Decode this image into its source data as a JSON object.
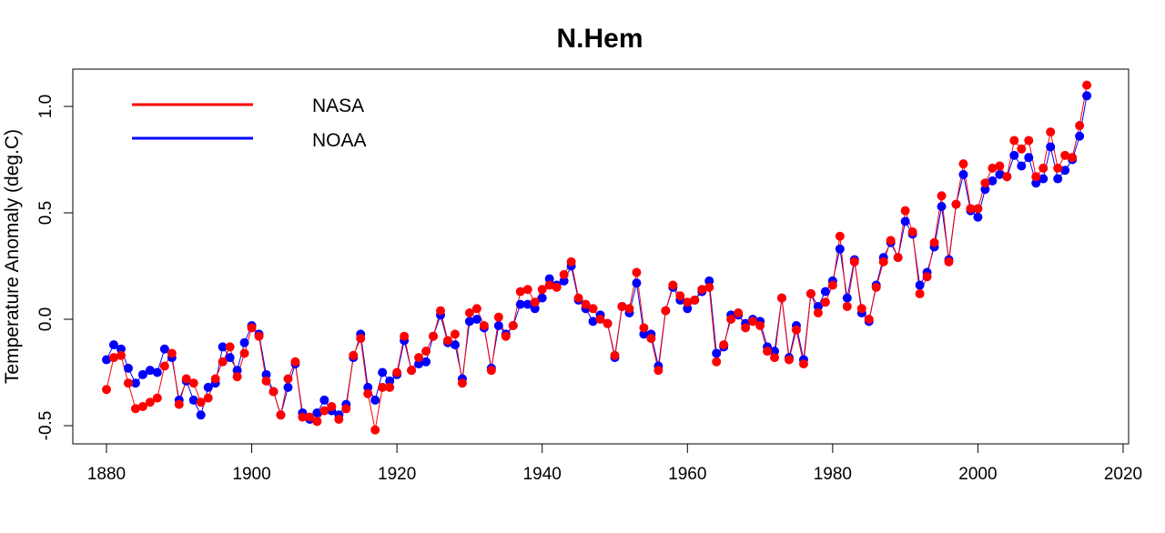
{
  "chart_data": {
    "type": "line",
    "title": "N.Hem",
    "xlabel": "",
    "ylabel": "Temperature Anomaly (deg.C)",
    "xlim": [
      1880,
      2020
    ],
    "ylim": [
      -0.5,
      1.0
    ],
    "x_ticks": [
      1880,
      1900,
      1920,
      1940,
      1960,
      1980,
      2000,
      2020
    ],
    "y_ticks": [
      -0.5,
      0.0,
      0.5,
      1.0
    ],
    "x_tick_labels": [
      "1880",
      "1900",
      "1920",
      "1940",
      "1960",
      "1980",
      "2000",
      "2020"
    ],
    "y_tick_labels": [
      "-0.5",
      "0.0",
      "0.5",
      "1.0"
    ],
    "grid": false,
    "legend_position": "top-left",
    "x_start": 1880,
    "series": [
      {
        "name": "NASA",
        "color": "#ff0000",
        "values": [
          -0.33,
          -0.18,
          -0.17,
          -0.3,
          -0.42,
          -0.41,
          -0.39,
          -0.37,
          -0.22,
          -0.16,
          -0.4,
          -0.28,
          -0.3,
          -0.39,
          -0.37,
          -0.28,
          -0.2,
          -0.13,
          -0.27,
          -0.16,
          -0.04,
          -0.08,
          -0.29,
          -0.34,
          -0.45,
          -0.28,
          -0.2,
          -0.46,
          -0.46,
          -0.48,
          -0.43,
          -0.41,
          -0.47,
          -0.42,
          -0.17,
          -0.09,
          -0.35,
          -0.52,
          -0.32,
          -0.32,
          -0.25,
          -0.08,
          -0.24,
          -0.18,
          -0.15,
          -0.08,
          0.04,
          -0.1,
          -0.07,
          -0.3,
          0.03,
          0.05,
          -0.03,
          -0.24,
          0.01,
          -0.08,
          -0.03,
          0.13,
          0.14,
          0.08,
          0.14,
          0.16,
          0.15,
          0.21,
          0.27,
          0.1,
          0.07,
          0.05,
          0.0,
          -0.02,
          -0.17,
          0.06,
          0.05,
          0.22,
          -0.04,
          -0.09,
          -0.24,
          0.04,
          0.16,
          0.11,
          0.08,
          0.09,
          0.14,
          0.15,
          -0.2,
          -0.12,
          0.0,
          0.03,
          -0.04,
          -0.01,
          -0.03,
          -0.15,
          -0.18,
          0.1,
          -0.19,
          -0.05,
          -0.21,
          0.12,
          0.03,
          0.08,
          0.16,
          0.39,
          0.06,
          0.27,
          0.05,
          0.0,
          0.15,
          0.27,
          0.37,
          0.29,
          0.51,
          0.41,
          0.12,
          0.2,
          0.36,
          0.58,
          0.27,
          0.54,
          0.73,
          0.52,
          0.52,
          0.64,
          0.71,
          0.72,
          0.67,
          0.84,
          0.8,
          0.84,
          0.67,
          0.71,
          0.88,
          0.71,
          0.77,
          0.76,
          0.91,
          1.1
        ]
      },
      {
        "name": "NOAA",
        "color": "#0000ff",
        "values": [
          -0.19,
          -0.12,
          -0.14,
          -0.23,
          -0.3,
          -0.26,
          -0.24,
          -0.25,
          -0.14,
          -0.18,
          -0.38,
          -0.29,
          -0.38,
          -0.45,
          -0.32,
          -0.3,
          -0.13,
          -0.18,
          -0.24,
          -0.11,
          -0.03,
          -0.07,
          -0.26,
          -0.34,
          -0.45,
          -0.32,
          -0.21,
          -0.44,
          -0.47,
          -0.44,
          -0.38,
          -0.43,
          -0.45,
          -0.4,
          -0.18,
          -0.07,
          -0.32,
          -0.38,
          -0.25,
          -0.29,
          -0.26,
          -0.1,
          -0.24,
          -0.21,
          -0.2,
          -0.08,
          0.02,
          -0.11,
          -0.12,
          -0.28,
          -0.01,
          0.0,
          -0.04,
          -0.23,
          -0.03,
          -0.07,
          -0.03,
          0.07,
          0.07,
          0.05,
          0.1,
          0.19,
          0.16,
          0.18,
          0.25,
          0.09,
          0.05,
          -0.01,
          0.02,
          -0.02,
          -0.18,
          0.06,
          0.03,
          0.17,
          -0.07,
          -0.07,
          -0.22,
          0.04,
          0.15,
          0.09,
          0.05,
          0.09,
          0.13,
          0.18,
          -0.16,
          -0.13,
          0.02,
          0.02,
          -0.02,
          0.0,
          -0.01,
          -0.13,
          -0.15,
          0.1,
          -0.18,
          -0.03,
          -0.19,
          0.12,
          0.06,
          0.13,
          0.18,
          0.33,
          0.1,
          0.28,
          0.03,
          -0.01,
          0.16,
          0.29,
          0.36,
          0.29,
          0.46,
          0.4,
          0.16,
          0.22,
          0.34,
          0.53,
          0.28,
          0.54,
          0.68,
          0.51,
          0.48,
          0.61,
          0.65,
          0.68,
          0.67,
          0.77,
          0.72,
          0.76,
          0.64,
          0.66,
          0.81,
          0.66,
          0.7,
          0.75,
          0.86,
          1.05
        ]
      }
    ]
  }
}
